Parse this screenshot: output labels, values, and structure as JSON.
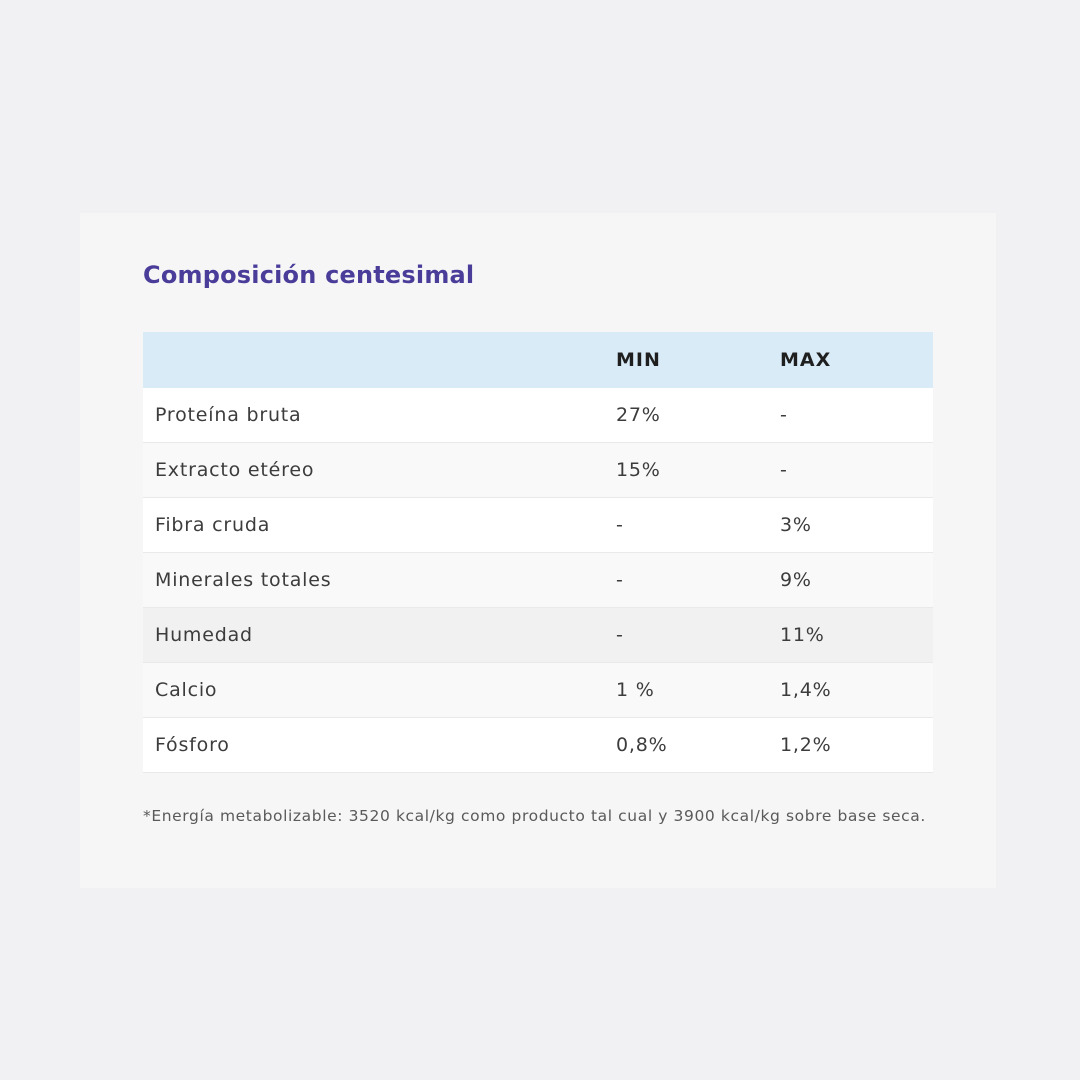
{
  "title": "Composición centesimal",
  "table": {
    "headers": [
      "",
      "MIN",
      "MAX"
    ],
    "rows": [
      {
        "name": "Proteína bruta",
        "min": "27%",
        "max": "-"
      },
      {
        "name": "Extracto etéreo",
        "min": "15%",
        "max": "-"
      },
      {
        "name": "Fibra cruda",
        "min": "-",
        "max": "3%"
      },
      {
        "name": "Minerales totales",
        "min": "-",
        "max": "9%"
      },
      {
        "name": "Humedad",
        "min": "-",
        "max": "11%"
      },
      {
        "name": "Calcio",
        "min": "1 %",
        "max": "1,4%"
      },
      {
        "name": "Fósforo",
        "min": "0,8%",
        "max": "1,2%"
      }
    ]
  },
  "footnote": "*Energía metabolizable: 3520 kcal/kg como producto tal cual y 3900 kcal/kg sobre base seca.",
  "colors": {
    "title": "#4a3d9a",
    "header_bg": "#d9ebf7",
    "page_bg": "#f1f1f3",
    "card_bg": "#f6f6f6"
  }
}
